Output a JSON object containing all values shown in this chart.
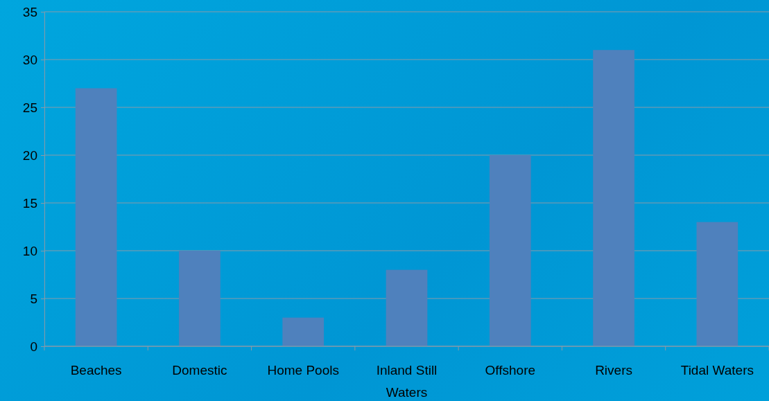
{
  "chart_data": {
    "type": "bar",
    "categories": [
      "Beaches",
      "Domestic",
      "Home Pools",
      "Inland Still Waters",
      "Offshore",
      "Rivers",
      "Tidal Waters"
    ],
    "values": [
      27,
      10,
      3,
      8,
      20,
      31,
      13
    ],
    "color": "#4f81bd",
    "ylim": [
      0,
      35
    ],
    "yticks": [
      0,
      5,
      10,
      15,
      20,
      25,
      30,
      35
    ],
    "grid": "y"
  }
}
